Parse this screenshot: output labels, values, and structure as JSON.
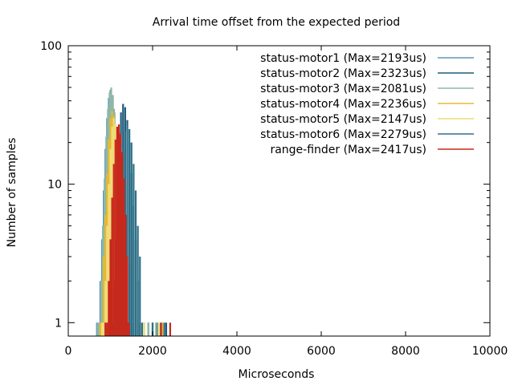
{
  "chart_data": {
    "type": "histogram",
    "title": "Arrival time offset from the expected period",
    "xlabel": "Microseconds",
    "ylabel": "Number of samples",
    "xlim": [
      0,
      10000
    ],
    "ylim": [
      0.8,
      100
    ],
    "yscale": "log",
    "grid": false,
    "legend_position": "top-right",
    "xticks": [
      0,
      2000,
      4000,
      6000,
      8000,
      10000
    ],
    "xtick_labels": [
      "0",
      "2000",
      "4000",
      "6000",
      "8000",
      "10000"
    ],
    "yticks": [
      1,
      10,
      100
    ],
    "ytick_labels": [
      "1",
      "10",
      "100"
    ],
    "series": [
      {
        "name": "status-motor1 (Max=2193us)",
        "color": "#5b97b5",
        "values": [
          [
            680,
            1
          ],
          [
            720,
            1
          ],
          [
            760,
            2
          ],
          [
            800,
            4
          ],
          [
            840,
            9
          ],
          [
            880,
            18
          ],
          [
            920,
            30
          ],
          [
            960,
            42
          ],
          [
            1000,
            48
          ],
          [
            1040,
            44
          ],
          [
            1080,
            35
          ],
          [
            1120,
            24
          ],
          [
            1160,
            14
          ],
          [
            1200,
            8
          ],
          [
            1240,
            4
          ],
          [
            1280,
            2
          ],
          [
            1320,
            1
          ],
          [
            1500,
            1
          ],
          [
            1800,
            1
          ],
          [
            2000,
            1
          ],
          [
            2193,
            1
          ]
        ]
      },
      {
        "name": "status-motor2 (Max=2323us)",
        "color": "#1f5a7a",
        "values": [
          [
            900,
            1
          ],
          [
            950,
            1
          ],
          [
            1000,
            2
          ],
          [
            1050,
            4
          ],
          [
            1100,
            8
          ],
          [
            1150,
            15
          ],
          [
            1200,
            24
          ],
          [
            1250,
            33
          ],
          [
            1300,
            38
          ],
          [
            1350,
            36
          ],
          [
            1400,
            29
          ],
          [
            1450,
            20
          ],
          [
            1500,
            12
          ],
          [
            1550,
            7
          ],
          [
            1600,
            4
          ],
          [
            1650,
            2
          ],
          [
            1700,
            1
          ],
          [
            1900,
            1
          ],
          [
            2100,
            1
          ],
          [
            2323,
            1
          ]
        ]
      },
      {
        "name": "status-motor3 (Max=2081us)",
        "color": "#8fb8a8",
        "values": [
          [
            700,
            1
          ],
          [
            740,
            1
          ],
          [
            780,
            2
          ],
          [
            820,
            5
          ],
          [
            860,
            11
          ],
          [
            900,
            22
          ],
          [
            940,
            35
          ],
          [
            980,
            46
          ],
          [
            1020,
            50
          ],
          [
            1060,
            44
          ],
          [
            1100,
            33
          ],
          [
            1140,
            21
          ],
          [
            1180,
            12
          ],
          [
            1220,
            6
          ],
          [
            1260,
            3
          ],
          [
            1300,
            1
          ],
          [
            1600,
            1
          ],
          [
            1900,
            1
          ],
          [
            2081,
            1
          ]
        ]
      },
      {
        "name": "status-motor4 (Max=2236us)",
        "color": "#e8b830",
        "values": [
          [
            760,
            1
          ],
          [
            800,
            1
          ],
          [
            840,
            3
          ],
          [
            880,
            6
          ],
          [
            920,
            12
          ],
          [
            960,
            21
          ],
          [
            1000,
            30
          ],
          [
            1040,
            34
          ],
          [
            1080,
            31
          ],
          [
            1120,
            24
          ],
          [
            1160,
            16
          ],
          [
            1200,
            9
          ],
          [
            1240,
            5
          ],
          [
            1280,
            2
          ],
          [
            1320,
            1
          ],
          [
            1700,
            1
          ],
          [
            2000,
            1
          ],
          [
            2236,
            1
          ]
        ]
      },
      {
        "name": "status-motor5 (Max=2147us)",
        "color": "#f0dc78",
        "values": [
          [
            800,
            1
          ],
          [
            840,
            1
          ],
          [
            880,
            2
          ],
          [
            920,
            5
          ],
          [
            960,
            10
          ],
          [
            1000,
            18
          ],
          [
            1040,
            26
          ],
          [
            1080,
            30
          ],
          [
            1120,
            27
          ],
          [
            1160,
            20
          ],
          [
            1200,
            13
          ],
          [
            1240,
            7
          ],
          [
            1280,
            3
          ],
          [
            1320,
            1
          ],
          [
            1800,
            1
          ],
          [
            2147,
            1
          ]
        ]
      },
      {
        "name": "status-motor6 (Max=2279us)",
        "color": "#2d7088",
        "values": [
          [
            1000,
            1
          ],
          [
            1050,
            1
          ],
          [
            1100,
            2
          ],
          [
            1150,
            4
          ],
          [
            1200,
            7
          ],
          [
            1250,
            12
          ],
          [
            1300,
            18
          ],
          [
            1350,
            24
          ],
          [
            1400,
            27
          ],
          [
            1450,
            25
          ],
          [
            1500,
            20
          ],
          [
            1550,
            14
          ],
          [
            1600,
            9
          ],
          [
            1650,
            5
          ],
          [
            1700,
            3
          ],
          [
            1750,
            1
          ],
          [
            2000,
            1
          ],
          [
            2279,
            1
          ]
        ]
      },
      {
        "name": "range-finder (Max=2417us)",
        "color": "#c8281c",
        "values": [
          [
            880,
            1
          ],
          [
            920,
            1
          ],
          [
            960,
            2
          ],
          [
            1000,
            4
          ],
          [
            1040,
            8
          ],
          [
            1080,
            14
          ],
          [
            1120,
            21
          ],
          [
            1160,
            26
          ],
          [
            1200,
            27
          ],
          [
            1240,
            23
          ],
          [
            1280,
            17
          ],
          [
            1320,
            11
          ],
          [
            1360,
            6
          ],
          [
            1400,
            3
          ],
          [
            1440,
            1
          ],
          [
            2200,
            1
          ],
          [
            2417,
            1
          ]
        ]
      }
    ]
  }
}
